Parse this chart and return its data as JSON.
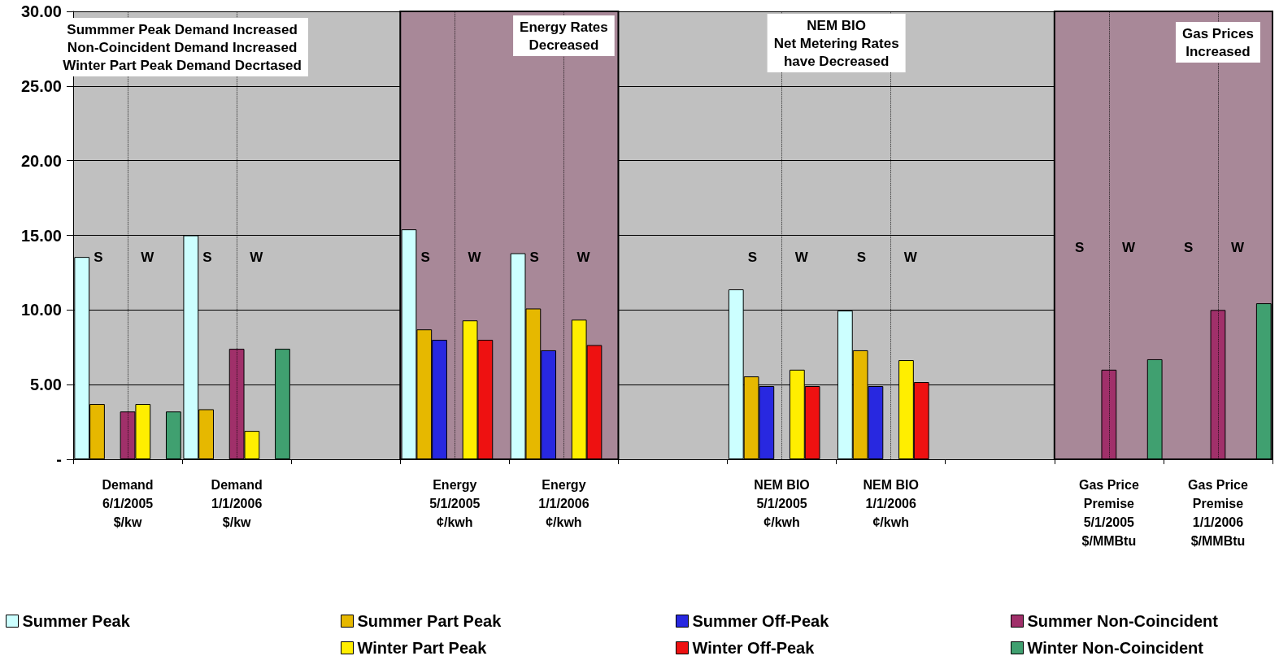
{
  "chart_data": {
    "type": "bar",
    "categories": [
      "Demand\n6/1/2005\n$/kw",
      "Demand\n1/1/2006\n$/kw",
      null,
      "Energy\n5/1/2005\n¢/kwh",
      "Energy\n1/1/2006\n¢/kwh",
      null,
      "NEM BIO\n5/1/2005\n¢/kwh",
      "NEM BIO\n1/1/2006\n¢/kwh",
      null,
      "Gas Price\nPremise\n5/1/2005\n$/MMBtu",
      "Gas Price\nPremise\n1/1/2006\n$/MMBtu"
    ],
    "series": [
      {
        "name": "Summer Peak",
        "color": "#ccffff",
        "values": [
          13.55,
          15.0,
          null,
          15.4,
          13.8,
          null,
          11.38,
          9.96,
          null,
          null,
          null
        ]
      },
      {
        "name": "Summer Part Peak",
        "color": "#e6b800",
        "values": [
          3.7,
          3.35,
          null,
          8.7,
          10.1,
          null,
          5.55,
          7.3,
          null,
          null,
          null
        ]
      },
      {
        "name": "Summer Off-Peak",
        "color": "#2828e0",
        "values": [
          null,
          null,
          null,
          8.0,
          7.3,
          null,
          4.9,
          4.9,
          null,
          null,
          null
        ]
      },
      {
        "name": "Summer Non-Coincident",
        "color": "#a0306a",
        "values": [
          3.2,
          7.4,
          null,
          null,
          null,
          null,
          null,
          null,
          null,
          6.0,
          10.0
        ]
      },
      {
        "name": "Winter Part Peak",
        "color": "#ffee00",
        "values": [
          3.7,
          1.9,
          null,
          9.3,
          9.35,
          null,
          6.0,
          6.64,
          null,
          null,
          null
        ]
      },
      {
        "name": "Winter Off-Peak",
        "color": "#ee1111",
        "values": [
          null,
          null,
          null,
          8.0,
          7.65,
          null,
          4.9,
          5.17,
          null,
          null,
          null
        ]
      },
      {
        "name": "Winter Non-Coincident",
        "color": "#40a070",
        "values": [
          3.2,
          7.4,
          null,
          null,
          null,
          null,
          null,
          null,
          null,
          6.7,
          10.45
        ]
      }
    ],
    "ylim": [
      0,
      30
    ],
    "yticks": [
      {
        "value": 0,
        "label": "-"
      },
      {
        "value": 5,
        "label": "5.00"
      },
      {
        "value": 10,
        "label": "10.00"
      },
      {
        "value": 15,
        "label": "15.00"
      },
      {
        "value": 20,
        "label": "20.00"
      },
      {
        "value": 25,
        "label": "25.00"
      },
      {
        "value": 30,
        "label": "30.00"
      }
    ],
    "grid": "y",
    "legend": "bottom",
    "bands": [
      {
        "axis": "x",
        "from": "Energy\n5/1/2005\n¢/kwh",
        "to": "Energy\n1/1/2006\n¢/kwh",
        "color": "#a88898"
      },
      {
        "axis": "x",
        "from": "Gas Price\nPremise\n5/1/2005\n$/MMBtu",
        "to": "Gas Price\nPremise\n1/1/2006\n$/MMBtu",
        "color": "#a88898"
      }
    ],
    "ref_lines": [
      {
        "axis": "x",
        "value": "Demand\n6/1/2005\n$/kw",
        "line_style": "dotted"
      },
      {
        "axis": "x",
        "value": "Demand\n1/1/2006\n$/kw",
        "line_style": "dotted"
      },
      {
        "axis": "x",
        "value": "Energy\n5/1/2005\n¢/kwh",
        "line_style": "dotted"
      },
      {
        "axis": "x",
        "value": "Energy\n1/1/2006\n¢/kwh",
        "line_style": "dotted"
      },
      {
        "axis": "x",
        "value": "NEM BIO\n5/1/2005\n¢/kwh",
        "line_style": "dotted"
      },
      {
        "axis": "x",
        "value": "NEM BIO\n1/1/2006\n¢/kwh",
        "line_style": "dotted"
      },
      {
        "axis": "x",
        "value": "Gas Price\nPremise\n5/1/2005\n$/MMBtu",
        "line_style": "dotted"
      },
      {
        "axis": "x",
        "value": "Gas Price\nPremise\n1/1/2006\n$/MMBtu",
        "line_style": "dotted"
      }
    ],
    "annotations": [
      "Summmer Peak Demand Increased\nNon-Coincident Demand Increased\nWinter Part Peak Demand Decrtased",
      "Energy Rates\nDecreased",
      "NEM BIO\nNet Metering Rates\nhave Decreased",
      "Gas Prices\nIncreased",
      "S",
      "W",
      "S",
      "W",
      "S",
      "W",
      "S",
      "W",
      "S",
      "W",
      "S",
      "W",
      "S",
      "W",
      "S",
      "W"
    ]
  }
}
